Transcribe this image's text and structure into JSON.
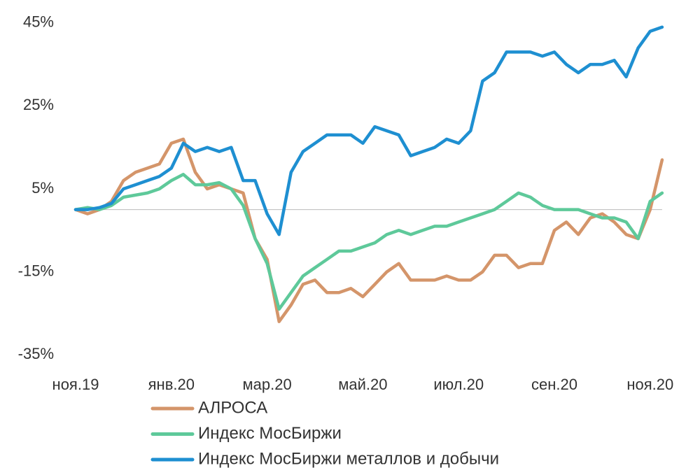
{
  "chart_data": {
    "type": "line",
    "categories": [
      "ноя.19",
      null,
      null,
      null,
      null,
      null,
      null,
      null,
      "янв.20",
      null,
      null,
      null,
      null,
      null,
      null,
      null,
      "мар.20",
      null,
      null,
      null,
      null,
      null,
      null,
      null,
      "май.20",
      null,
      null,
      null,
      null,
      null,
      null,
      null,
      "июл.20",
      null,
      null,
      null,
      null,
      null,
      null,
      null,
      "сен.20",
      null,
      null,
      null,
      null,
      null,
      null,
      null,
      "ноя.20",
      null
    ],
    "series": [
      {
        "name": "АЛРОСА",
        "color": "#d4956a",
        "values": [
          0,
          -1,
          0,
          2,
          7,
          9,
          10,
          11,
          16,
          17,
          9,
          5,
          6,
          5,
          4,
          -7,
          -12,
          -27,
          -23,
          -18,
          -17,
          -20,
          -20,
          -19,
          -21,
          -18,
          -15,
          -13,
          -17,
          -17,
          -17,
          -16,
          -17,
          -17,
          -15,
          -11,
          -11,
          -14,
          -13,
          -13,
          -5,
          -3,
          -6,
          -2,
          -1,
          -3,
          -6,
          -7,
          0,
          12
        ]
      },
      {
        "name": "Индекс МосБиржи",
        "color": "#5ec99a",
        "values": [
          0,
          0.5,
          0,
          1,
          3,
          3.5,
          4,
          5,
          7,
          8.5,
          6,
          6,
          6.5,
          5,
          1,
          -7,
          -13,
          -24,
          -20,
          -16,
          -14,
          -12,
          -10,
          -10,
          -9,
          -8,
          -6,
          -5,
          -6,
          -5,
          -4,
          -4,
          -3,
          -2,
          -1,
          0,
          2,
          4,
          3,
          1,
          0,
          0,
          0,
          -1,
          -2,
          -2,
          -3,
          -7,
          2,
          4
        ]
      },
      {
        "name": "Индекс МосБиржи металлов и добычи",
        "color": "#1e8fd1",
        "values": [
          0,
          0,
          0.5,
          1.5,
          5,
          6,
          7,
          8,
          10,
          16,
          14,
          15,
          14,
          15,
          7,
          7,
          -1,
          -6,
          9,
          14,
          16,
          18,
          18,
          18,
          16,
          20,
          19,
          18,
          13,
          14,
          15,
          17,
          16,
          19,
          31,
          33,
          38,
          38,
          38,
          37,
          38,
          35,
          33,
          35,
          35,
          36,
          32,
          39,
          43,
          44
        ]
      }
    ],
    "ylim": [
      -37,
      47
    ],
    "yticks": [
      {
        "value": 45,
        "label": "45%"
      },
      {
        "value": 25,
        "label": "25%"
      },
      {
        "value": 5,
        "label": "5%"
      },
      {
        "value": -15,
        "label": "-15%"
      },
      {
        "value": -35,
        "label": "-35%"
      }
    ]
  }
}
